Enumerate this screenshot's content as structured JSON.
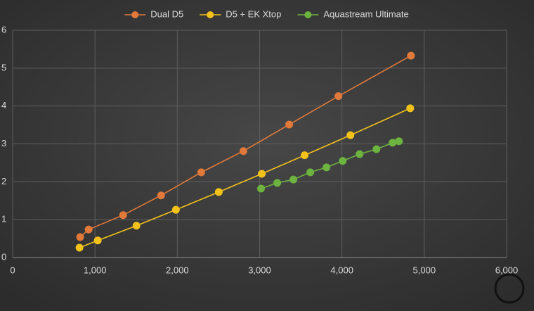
{
  "chart_data": {
    "type": "line",
    "series": [
      {
        "name": "Dual D5",
        "color": "#e0793a",
        "x": [
          820,
          923,
          1342,
          1803,
          2291,
          2803,
          3359,
          3957,
          4838
        ],
        "values": [
          0.54,
          0.74,
          1.12,
          1.64,
          2.25,
          2.81,
          3.51,
          4.26,
          5.33
        ]
      },
      {
        "name": "D5 + EK Xtop",
        "color": "#f2c21b",
        "x": [
          812,
          1034,
          1504,
          1983,
          2504,
          3026,
          3547,
          4103,
          4829
        ],
        "values": [
          0.26,
          0.45,
          0.84,
          1.26,
          1.73,
          2.21,
          2.7,
          3.23,
          3.94
        ]
      },
      {
        "name": "Aquastream Ultimate",
        "color": "#6db33f",
        "x": [
          3017,
          3214,
          3410,
          3615,
          3812,
          4009,
          4214,
          4419,
          4615,
          4692
        ],
        "values": [
          1.82,
          1.97,
          2.06,
          2.25,
          2.38,
          2.55,
          2.73,
          2.86,
          3.03,
          3.07
        ]
      }
    ],
    "xlim": [
      0,
      6000
    ],
    "xticks": [
      0,
      {
        "value": 1000,
        "label": "1,000"
      },
      {
        "value": 2000,
        "label": "2,000"
      },
      {
        "value": 3000,
        "label": "3,000"
      },
      {
        "value": 4000,
        "label": "4,000"
      },
      {
        "value": 5000,
        "label": "5,000"
      },
      {
        "value": 6000,
        "label": "6,000"
      }
    ],
    "ylim": [
      0,
      6
    ],
    "yticks": [
      0,
      1,
      2,
      3,
      4,
      5,
      6
    ],
    "grid": true,
    "legend": "top"
  }
}
